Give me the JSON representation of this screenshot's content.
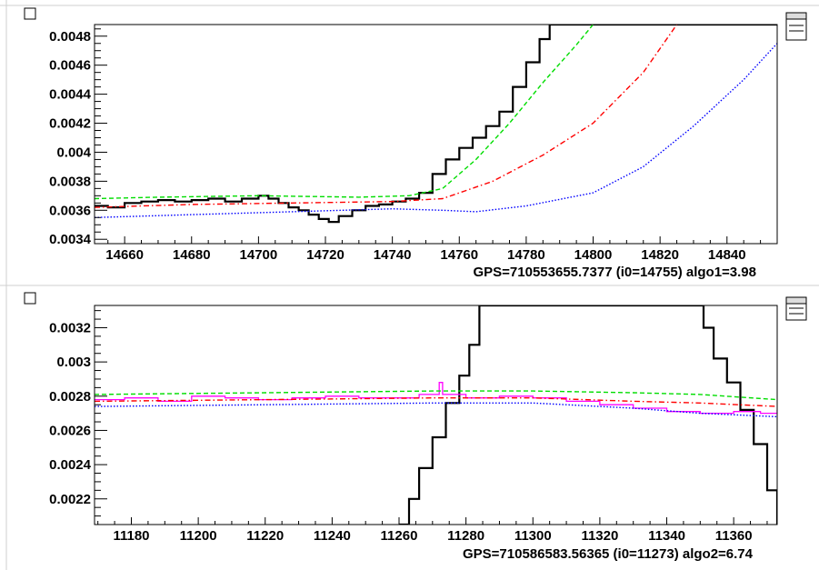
{
  "chart_data": [
    {
      "type": "line",
      "caption": "GPS=710553655.7377  (i0=14755)  algo1=3.98",
      "xlim": [
        14651,
        14855
      ],
      "ylim": [
        0.00337,
        0.00488
      ],
      "x_ticks": [
        "14660",
        "14680",
        "14700",
        "14720",
        "14740",
        "14760",
        "14780",
        "14800",
        "14820",
        "14840"
      ],
      "y_ticks": [
        "0.0034",
        "0.0036",
        "0.0038",
        "0.004",
        "0.0042",
        "0.0044",
        "0.0046",
        "0.0048"
      ],
      "grid": false,
      "series": [
        {
          "color": "#000000",
          "style": "step",
          "points": [
            [
              14651,
              0.00363
            ],
            [
              14655,
              0.00362
            ],
            [
              14660,
              0.00365
            ],
            [
              14665,
              0.00366
            ],
            [
              14670,
              0.00367
            ],
            [
              14675,
              0.00366
            ],
            [
              14680,
              0.00367
            ],
            [
              14685,
              0.00368
            ],
            [
              14690,
              0.00366
            ],
            [
              14695,
              0.00368
            ],
            [
              14700,
              0.0037
            ],
            [
              14703,
              0.00368
            ],
            [
              14706,
              0.00365
            ],
            [
              14709,
              0.00362
            ],
            [
              14712,
              0.0036
            ],
            [
              14715,
              0.00357
            ],
            [
              14718,
              0.00354
            ],
            [
              14721,
              0.00352
            ],
            [
              14724,
              0.00356
            ],
            [
              14728,
              0.0036
            ],
            [
              14732,
              0.00363
            ],
            [
              14736,
              0.00364
            ],
            [
              14740,
              0.00366
            ],
            [
              14744,
              0.00368
            ],
            [
              14748,
              0.00372
            ],
            [
              14752,
              0.00385
            ],
            [
              14756,
              0.00395
            ],
            [
              14760,
              0.00403
            ],
            [
              14764,
              0.0041
            ],
            [
              14768,
              0.00418
            ],
            [
              14772,
              0.00428
            ],
            [
              14776,
              0.00445
            ],
            [
              14780,
              0.00462
            ],
            [
              14784,
              0.00478
            ],
            [
              14787,
              0.00488
            ],
            [
              14855,
              0.00488
            ]
          ]
        },
        {
          "color": "#00dd00",
          "style": "dashed",
          "points": [
            [
              14651,
              0.00368
            ],
            [
              14670,
              0.00369
            ],
            [
              14700,
              0.0037
            ],
            [
              14730,
              0.00369
            ],
            [
              14745,
              0.0037
            ],
            [
              14755,
              0.00375
            ],
            [
              14765,
              0.00395
            ],
            [
              14775,
              0.0042
            ],
            [
              14785,
              0.00448
            ],
            [
              14795,
              0.00474
            ],
            [
              14800,
              0.00488
            ]
          ]
        },
        {
          "color": "#ff0000",
          "style": "dashdot",
          "points": [
            [
              14651,
              0.00362
            ],
            [
              14680,
              0.00364
            ],
            [
              14710,
              0.00365
            ],
            [
              14740,
              0.00366
            ],
            [
              14755,
              0.00368
            ],
            [
              14770,
              0.0038
            ],
            [
              14785,
              0.00398
            ],
            [
              14800,
              0.0042
            ],
            [
              14815,
              0.00455
            ],
            [
              14825,
              0.00488
            ]
          ]
        },
        {
          "color": "#0000ff",
          "style": "dotted",
          "points": [
            [
              14651,
              0.00355
            ],
            [
              14680,
              0.00357
            ],
            [
              14710,
              0.00359
            ],
            [
              14740,
              0.00361
            ],
            [
              14755,
              0.0036
            ],
            [
              14765,
              0.00359
            ],
            [
              14780,
              0.00363
            ],
            [
              14800,
              0.00372
            ],
            [
              14815,
              0.0039
            ],
            [
              14830,
              0.00418
            ],
            [
              14845,
              0.0045
            ],
            [
              14855,
              0.00475
            ]
          ]
        }
      ]
    },
    {
      "type": "line",
      "caption": "GPS=710586583.56365  (i0=11273)  algo2=6.74",
      "xlim": [
        11169,
        11373
      ],
      "ylim": [
        0.00205,
        0.00333
      ],
      "x_ticks": [
        "11180",
        "11200",
        "11220",
        "11240",
        "11260",
        "11280",
        "11300",
        "11320",
        "11340",
        "11360"
      ],
      "y_ticks": [
        "0.0022",
        "0.0024",
        "0.0026",
        "0.0028",
        "0.003",
        "0.0032"
      ],
      "grid": false,
      "series": [
        {
          "color": "#000000",
          "style": "step",
          "points": [
            [
              11260,
              0.00205
            ],
            [
              11263,
              0.0022
            ],
            [
              11266,
              0.00238
            ],
            [
              11270,
              0.00256
            ],
            [
              11274,
              0.00276
            ],
            [
              11278,
              0.00292
            ],
            [
              11281,
              0.0031
            ],
            [
              11284,
              0.00333
            ],
            [
              11348,
              0.00333
            ],
            [
              11351,
              0.0032
            ],
            [
              11354,
              0.00302
            ],
            [
              11358,
              0.00288
            ],
            [
              11362,
              0.00272
            ],
            [
              11366,
              0.00252
            ],
            [
              11370,
              0.00225
            ],
            [
              11373,
              0.00205
            ]
          ]
        },
        {
          "color": "#ff00ff",
          "style": "step",
          "points": [
            [
              11169,
              0.00278
            ],
            [
              11178,
              0.00279
            ],
            [
              11188,
              0.00277
            ],
            [
              11198,
              0.0028
            ],
            [
              11208,
              0.00279
            ],
            [
              11218,
              0.00278
            ],
            [
              11228,
              0.00279
            ],
            [
              11238,
              0.0028
            ],
            [
              11248,
              0.00279
            ],
            [
              11258,
              0.00279
            ],
            [
              11266,
              0.00281
            ],
            [
              11272,
              0.00288
            ],
            [
              11273,
              0.00281
            ],
            [
              11280,
              0.00279
            ],
            [
              11290,
              0.0028
            ],
            [
              11300,
              0.00279
            ],
            [
              11310,
              0.00277
            ],
            [
              11320,
              0.00275
            ],
            [
              11330,
              0.00273
            ],
            [
              11340,
              0.00271
            ],
            [
              11350,
              0.0027
            ],
            [
              11360,
              0.00271
            ],
            [
              11368,
              0.0027
            ],
            [
              11373,
              0.00272
            ]
          ]
        },
        {
          "color": "#00dd00",
          "style": "dashed",
          "points": [
            [
              11169,
              0.00281
            ],
            [
              11220,
              0.00282
            ],
            [
              11270,
              0.00283
            ],
            [
              11300,
              0.00283
            ],
            [
              11330,
              0.00282
            ],
            [
              11350,
              0.00281
            ],
            [
              11373,
              0.00278
            ]
          ]
        },
        {
          "color": "#ff0000",
          "style": "dashdot",
          "points": [
            [
              11169,
              0.00277
            ],
            [
              11220,
              0.00278
            ],
            [
              11270,
              0.00279
            ],
            [
              11300,
              0.00279
            ],
            [
              11330,
              0.00277
            ],
            [
              11350,
              0.00276
            ],
            [
              11373,
              0.00274
            ]
          ]
        },
        {
          "color": "#0000ff",
          "style": "dotted",
          "points": [
            [
              11169,
              0.00274
            ],
            [
              11220,
              0.00275
            ],
            [
              11270,
              0.00276
            ],
            [
              11300,
              0.00276
            ],
            [
              11330,
              0.00273
            ],
            [
              11350,
              0.0027
            ],
            [
              11373,
              0.00268
            ]
          ]
        }
      ]
    }
  ]
}
